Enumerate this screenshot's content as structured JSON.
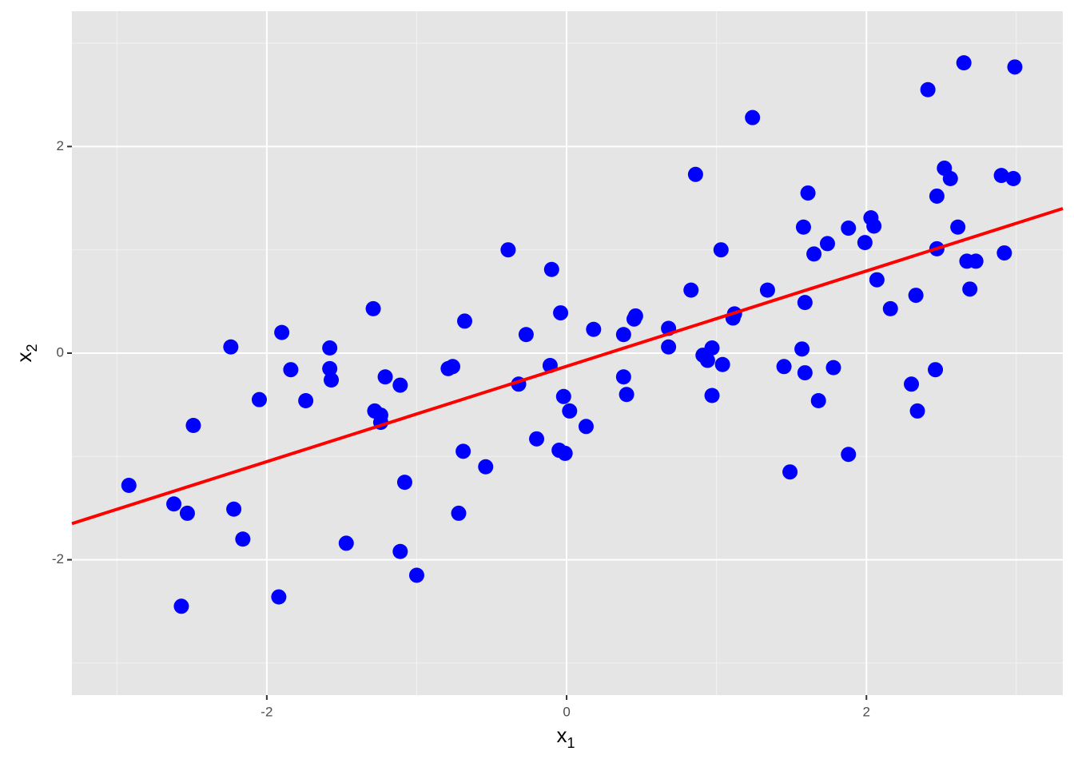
{
  "chart_data": {
    "type": "scatter",
    "xlabel": {
      "text": "x",
      "subscript": "1"
    },
    "ylabel": {
      "text": "x",
      "subscript": "2"
    },
    "xlim": [
      -3.3,
      3.31
    ],
    "ylim": [
      -3.31,
      3.31
    ],
    "xticks": [
      -2,
      0,
      2
    ],
    "yticks": [
      -2,
      0,
      2
    ],
    "x_minor_grid": [
      -3,
      -1,
      1,
      3
    ],
    "y_minor_grid": [
      -3,
      -1,
      1,
      3
    ],
    "grid": true,
    "series": [
      {
        "color": "#0000ff",
        "x": [
          -2.92,
          -2.62,
          -2.53,
          -2.57,
          -2.49,
          -2.24,
          -2.22,
          -2.16,
          -2.05,
          -1.92,
          -1.9,
          -1.84,
          -1.74,
          -1.58,
          -1.58,
          -1.57,
          -1.47,
          -1.29,
          -1.28,
          -1.24,
          -1.24,
          -1.21,
          -1.11,
          -1.11,
          -1.08,
          -1.0,
          -0.79,
          -0.76,
          -0.72,
          -0.69,
          -0.68,
          -0.54,
          -0.39,
          -0.32,
          -0.27,
          -0.2,
          -0.11,
          -0.1,
          -0.05,
          -0.04,
          -0.02,
          -0.01,
          0.02,
          0.13,
          0.18,
          0.38,
          0.38,
          0.4,
          0.45,
          0.46,
          0.68,
          0.68,
          0.83,
          0.86,
          0.91,
          0.94,
          0.97,
          0.97,
          1.04,
          1.03,
          1.11,
          1.12,
          1.24,
          1.34,
          1.45,
          1.49,
          1.57,
          1.58,
          1.59,
          1.59,
          1.61,
          1.65,
          1.68,
          1.74,
          1.78,
          1.88,
          1.88,
          1.99,
          2.03,
          2.05,
          2.07,
          2.16,
          2.3,
          2.33,
          2.34,
          2.41,
          2.46,
          2.47,
          2.47,
          2.52,
          2.56,
          2.61,
          2.65,
          2.67,
          2.69,
          2.73,
          2.9,
          2.92,
          2.98,
          2.99
        ],
        "values": [
          -1.28,
          -1.46,
          -1.55,
          -2.45,
          -0.7,
          0.06,
          -1.51,
          -1.8,
          -0.45,
          -2.36,
          0.2,
          -0.16,
          -0.46,
          0.05,
          -0.15,
          -0.26,
          -1.84,
          0.43,
          -0.56,
          -0.6,
          -0.67,
          -0.23,
          -0.31,
          -1.92,
          -1.25,
          -2.15,
          -0.15,
          -0.13,
          -1.55,
          -0.95,
          0.31,
          -1.1,
          1.0,
          -0.3,
          0.18,
          -0.83,
          -0.12,
          0.81,
          -0.94,
          0.39,
          -0.42,
          -0.97,
          -0.56,
          -0.71,
          0.23,
          0.18,
          -0.23,
          -0.4,
          0.33,
          0.36,
          0.24,
          0.06,
          0.61,
          1.73,
          -0.02,
          -0.07,
          0.05,
          -0.41,
          -0.11,
          1.0,
          0.34,
          0.38,
          2.28,
          0.61,
          -0.13,
          -1.15,
          0.04,
          1.22,
          -0.19,
          0.49,
          1.55,
          0.96,
          -0.46,
          1.06,
          -0.14,
          1.21,
          -0.98,
          1.07,
          1.31,
          1.23,
          0.71,
          0.43,
          -0.3,
          0.56,
          -0.56,
          2.55,
          -0.16,
          1.52,
          1.01,
          1.79,
          1.69,
          1.22,
          2.81,
          0.89,
          0.62,
          0.89,
          1.72,
          0.97,
          1.69,
          2.77
        ]
      }
    ],
    "fit_line": {
      "color": "#ff0000",
      "x": [
        -3.3,
        3.31
      ],
      "values": [
        -1.65,
        1.4
      ]
    }
  }
}
